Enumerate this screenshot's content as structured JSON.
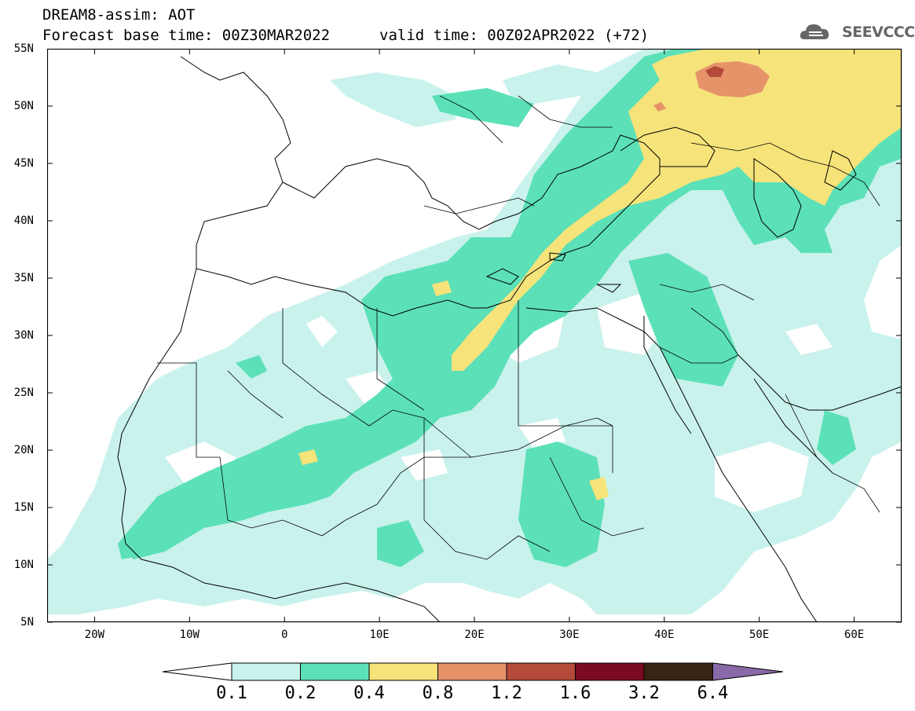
{
  "header": {
    "line1": "DREAM8-assim: AOT",
    "line2": "Forecast base time: 00Z30MAR2022",
    "line3": "valid time: 00Z02APR2022 (+72)",
    "logo_text": "SEEVCCC"
  },
  "map": {
    "lon_range": [
      -25,
      65
    ],
    "lat_range": [
      5,
      55
    ],
    "lat_labels": [
      "55N",
      "50N",
      "45N",
      "40N",
      "35N",
      "30N",
      "25N",
      "20N",
      "15N",
      "10N",
      "5N"
    ],
    "lon_labels": [
      "20W",
      "10W",
      "0",
      "10E",
      "20E",
      "30E",
      "40E",
      "50E",
      "60E"
    ],
    "background": "#ffffff",
    "coastline_color": "#000000"
  },
  "colorbar": {
    "labels": [
      "0.1",
      "0.2",
      "0.4",
      "0.8",
      "1.2",
      "1.6",
      "3.2",
      "6.4"
    ],
    "colors": [
      "#ffffff",
      "#c9f2ec",
      "#5ce0b8",
      "#f6e37a",
      "#e6936a",
      "#b34a3a",
      "#7a0a22",
      "#3a2414",
      "#8a69a8"
    ]
  }
}
